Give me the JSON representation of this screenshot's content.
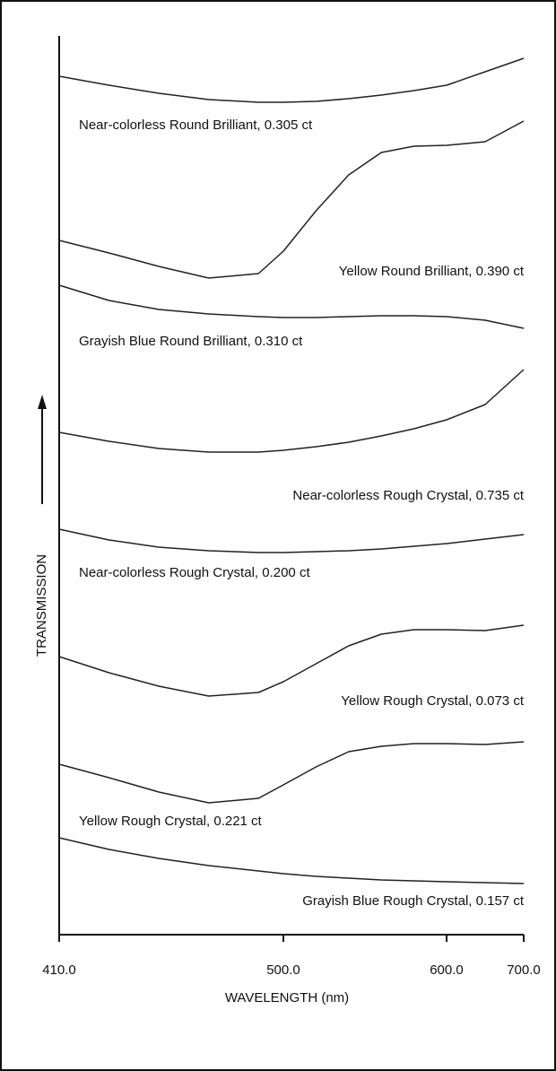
{
  "chart_data": {
    "type": "line",
    "xlabel": "WAVELENGTH (nm)",
    "ylabel": "TRANSMISSION",
    "x": [
      410,
      430,
      450,
      470,
      490,
      500,
      520,
      540,
      560,
      580,
      600,
      650,
      700
    ],
    "xlim": [
      410,
      700
    ],
    "xticks": [
      {
        "value": 410,
        "label": "410.0"
      },
      {
        "value": 500,
        "label": "500.0"
      },
      {
        "value": 600,
        "label": "600.0"
      },
      {
        "value": 700,
        "label": "700.0"
      }
    ],
    "ylim": [
      0,
      1002
    ],
    "color": "#222222",
    "series": [
      {
        "name": "Near-colorless Round Brilliant, 0.305 ct",
        "values": [
          957,
          947,
          938,
          931,
          928,
          928,
          929,
          932,
          936,
          941,
          947,
          962,
          977
        ]
      },
      {
        "name": "Yellow Round Brilliant, 0.390 ct",
        "values": [
          774,
          760,
          745,
          732,
          737,
          762,
          807,
          847,
          872,
          879,
          880,
          884,
          907
        ]
      },
      {
        "name": "Grayish Blue Round Brilliant, 0.310 ct",
        "values": [
          724,
          707,
          697,
          692,
          689,
          688,
          688,
          689,
          690,
          690,
          689,
          685,
          676
        ]
      },
      {
        "name": "Near-colorless Rough Crystal, 0.735 ct",
        "values": [
          560,
          550,
          542,
          538,
          538,
          540,
          544,
          549,
          556,
          564,
          574,
          591,
          630
        ]
      },
      {
        "name": "Near-colorless Rough Crystal, 0.200 ct",
        "values": [
          452,
          440,
          432,
          428,
          426,
          426,
          427,
          428,
          430,
          433,
          436,
          441,
          446
        ]
      },
      {
        "name": "Yellow Rough Crystal, 0.073 ct",
        "values": [
          310,
          292,
          277,
          266,
          270,
          282,
          302,
          322,
          335,
          340,
          340,
          339,
          345
        ]
      },
      {
        "name": "Yellow Rough Crystal, 0.221 ct",
        "values": [
          190,
          175,
          159,
          147,
          152,
          167,
          187,
          204,
          210,
          213,
          213,
          212,
          215
        ]
      },
      {
        "name": "Grayish Blue Rough Crystal, 0.157 ct",
        "values": [
          108,
          95,
          85,
          77,
          71,
          68,
          65,
          63,
          61,
          60,
          59,
          58,
          57
        ]
      }
    ]
  }
}
